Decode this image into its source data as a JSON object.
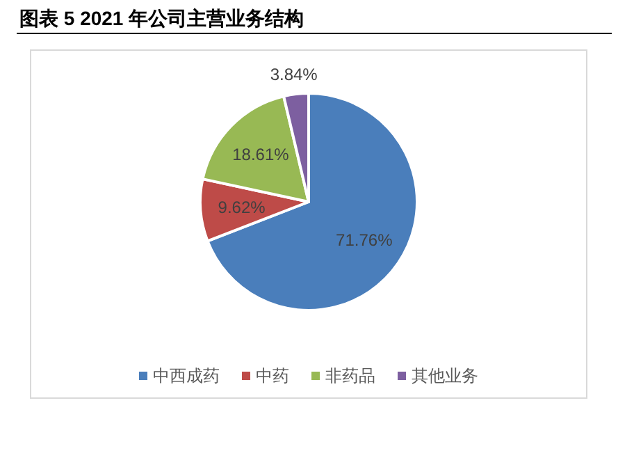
{
  "chart_data": {
    "type": "pie",
    "title": "图表 5 2021 年公司主营业务结构",
    "categories": [
      "中西成药",
      "中药",
      "非药品",
      "其他业务"
    ],
    "values": [
      71.76,
      9.62,
      18.61,
      3.84
    ],
    "value_labels": [
      "71.76%",
      "9.62%",
      "18.61%",
      "3.84%"
    ],
    "colors": [
      "#4a7ebb",
      "#be4b48",
      "#98b954",
      "#7d5fa0"
    ],
    "legend": "bottom"
  }
}
